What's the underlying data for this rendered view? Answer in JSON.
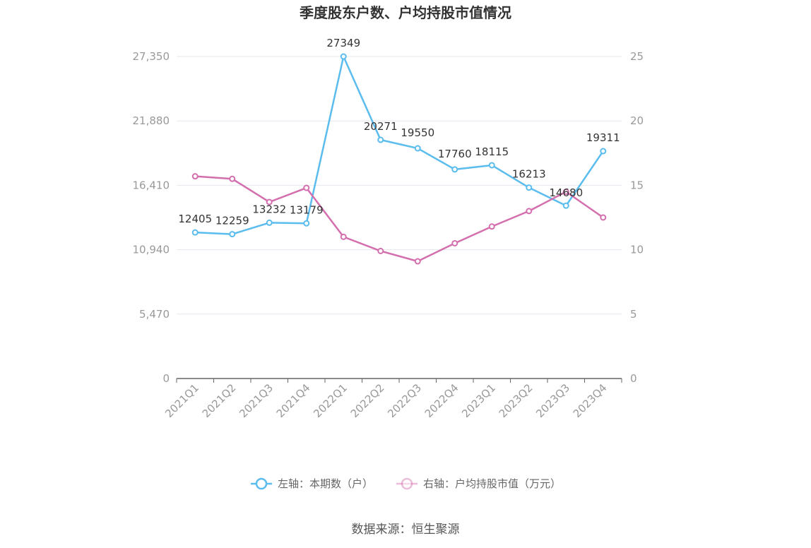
{
  "chart_data": {
    "type": "line",
    "title": "季度股东户数、户均持股市值情况",
    "categories": [
      "2021Q1",
      "2021Q2",
      "2021Q3",
      "2021Q4",
      "2022Q1",
      "2022Q2",
      "2022Q3",
      "2022Q4",
      "2023Q1",
      "2023Q2",
      "2023Q3",
      "2023Q4"
    ],
    "left_axis": {
      "min": 0,
      "max": 27350,
      "ticks": [
        0,
        5470,
        10940,
        16410,
        21880,
        27350
      ],
      "tick_labels": [
        "0",
        "5,470",
        "10,940",
        "16,410",
        "21,880",
        "27,350"
      ]
    },
    "right_axis": {
      "min": 0,
      "max": 25,
      "ticks": [
        0,
        5,
        10,
        15,
        20,
        25
      ],
      "tick_labels": [
        "0",
        "5",
        "10",
        "15",
        "20",
        "25"
      ]
    },
    "series": [
      {
        "name": "左轴：本期数（户）",
        "axis": "left",
        "color": "#5bbcee",
        "values": [
          12405,
          12259,
          13232,
          13179,
          27349,
          20271,
          19550,
          17760,
          18115,
          16213,
          14680,
          19311
        ],
        "labels": [
          "12405",
          "12259",
          "13232",
          "13179",
          "27349",
          "20271",
          "19550",
          "17760",
          "18115",
          "16213",
          "14680",
          "19311"
        ]
      },
      {
        "name": "右轴：户均持股市值（万元）",
        "axis": "right",
        "color": "#d46fae",
        "values": [
          15.7,
          15.5,
          13.7,
          14.8,
          11.0,
          9.9,
          9.1,
          10.5,
          11.8,
          13.0,
          14.5,
          12.5
        ]
      }
    ],
    "legend_position": "bottom",
    "grid": true
  },
  "source": "数据来源：恒生聚源"
}
